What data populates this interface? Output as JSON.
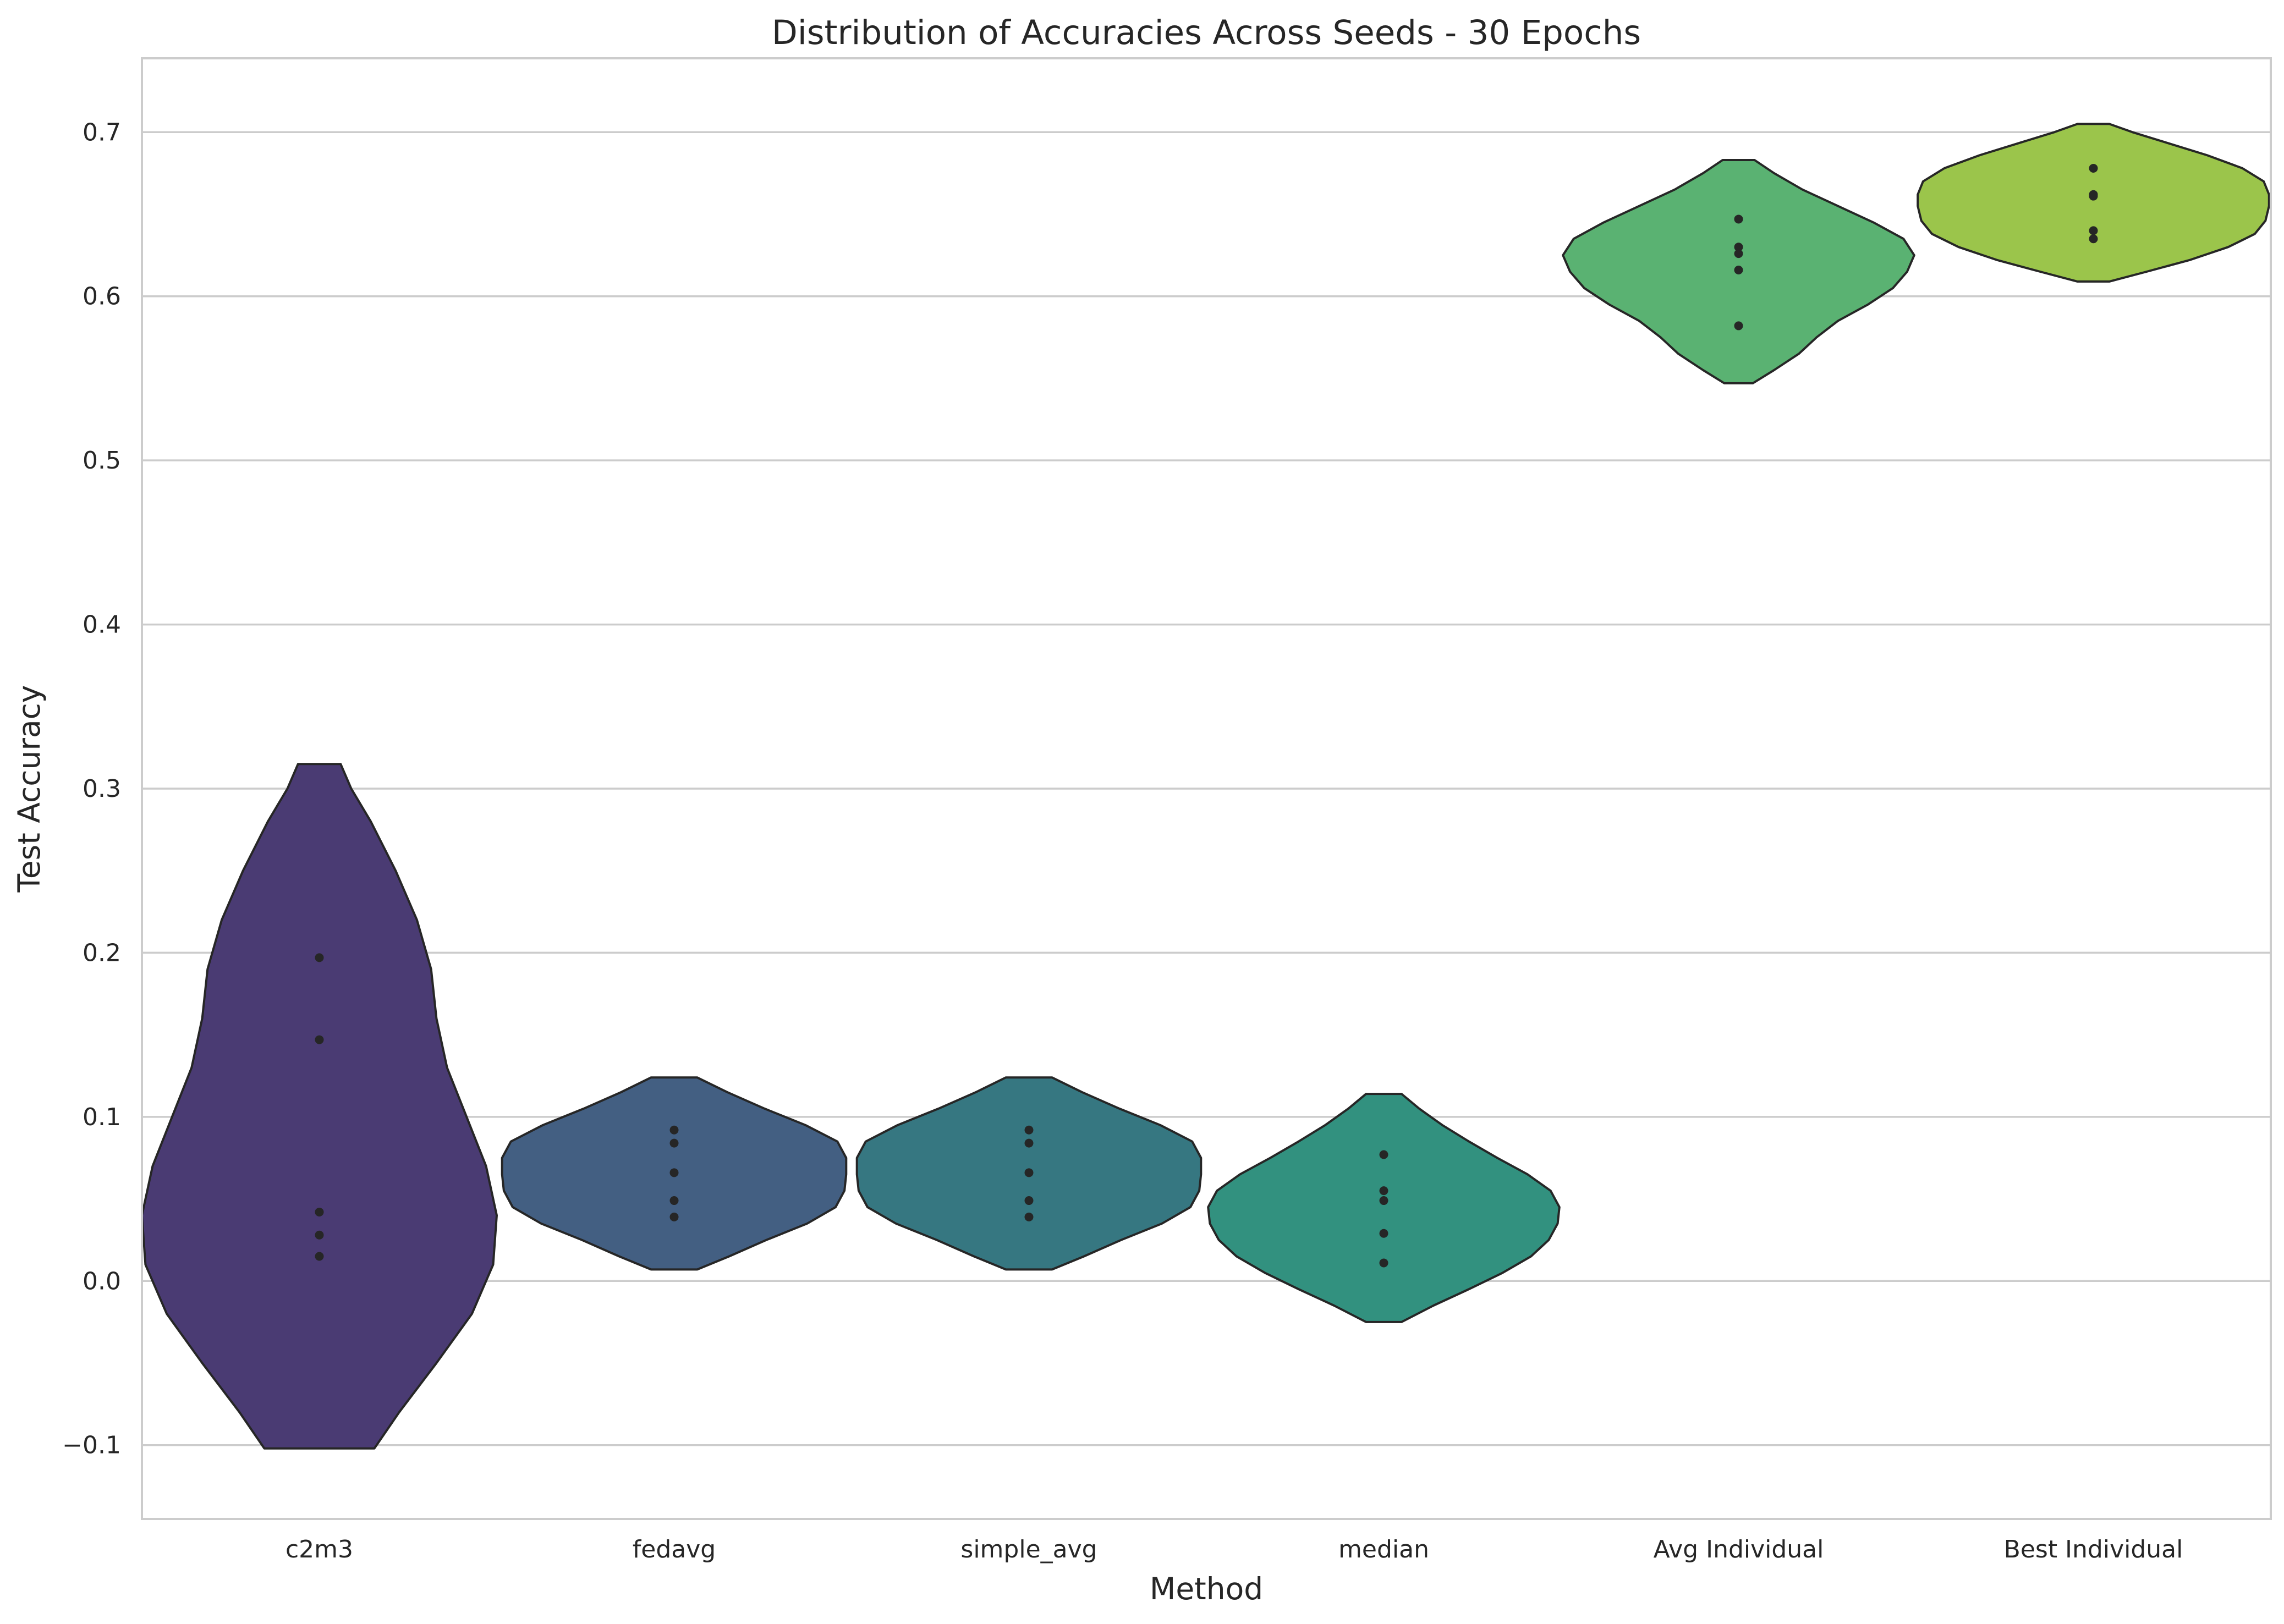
{
  "chart_data": {
    "type": "violin",
    "title": "Distribution of Accuracies Across Seeds - 30 Epochs",
    "xlabel": "Method",
    "ylabel": "Test Accuracy",
    "ylim": [
      -0.145,
      0.745
    ],
    "y_ticks": [
      -0.1,
      0.0,
      0.1,
      0.2,
      0.3,
      0.4,
      0.5,
      0.6,
      0.7
    ],
    "y_tick_labels": [
      "−0.1",
      "0.0",
      "0.1",
      "0.2",
      "0.3",
      "0.4",
      "0.5",
      "0.6",
      "0.7"
    ],
    "grid": "horizontal",
    "categories": [
      "c2m3",
      "fedavg",
      "simple_avg",
      "median",
      "Avg Individual",
      "Best Individual"
    ],
    "series": [
      {
        "category": "c2m3",
        "color": "#4a3b73",
        "points": [
          0.197,
          0.147,
          0.042,
          0.028,
          0.015
        ],
        "range": [
          -0.102,
          0.315
        ],
        "density": [
          [
            -0.102,
            0.31
          ],
          [
            -0.08,
            0.45
          ],
          [
            -0.05,
            0.66
          ],
          [
            -0.02,
            0.86
          ],
          [
            0.01,
            0.98
          ],
          [
            0.04,
            1.0
          ],
          [
            0.07,
            0.94
          ],
          [
            0.1,
            0.83
          ],
          [
            0.13,
            0.72
          ],
          [
            0.16,
            0.66
          ],
          [
            0.19,
            0.63
          ],
          [
            0.22,
            0.55
          ],
          [
            0.25,
            0.43
          ],
          [
            0.28,
            0.29
          ],
          [
            0.3,
            0.18
          ],
          [
            0.315,
            0.12
          ]
        ]
      },
      {
        "category": "fedavg",
        "color": "#435f82",
        "points": [
          0.092,
          0.084,
          0.066,
          0.049,
          0.039
        ],
        "range": [
          0.007,
          0.124
        ],
        "density": [
          [
            0.007,
            0.13
          ],
          [
            0.015,
            0.31
          ],
          [
            0.025,
            0.52
          ],
          [
            0.035,
            0.75
          ],
          [
            0.045,
            0.91
          ],
          [
            0.055,
            0.96
          ],
          [
            0.065,
            0.97
          ],
          [
            0.075,
            0.97
          ],
          [
            0.085,
            0.92
          ],
          [
            0.095,
            0.74
          ],
          [
            0.105,
            0.51
          ],
          [
            0.115,
            0.3
          ],
          [
            0.124,
            0.13
          ]
        ]
      },
      {
        "category": "simple_avg",
        "color": "#367781",
        "points": [
          0.092,
          0.084,
          0.066,
          0.049,
          0.039
        ],
        "range": [
          0.007,
          0.124
        ],
        "density": [
          [
            0.007,
            0.13
          ],
          [
            0.015,
            0.31
          ],
          [
            0.025,
            0.52
          ],
          [
            0.035,
            0.75
          ],
          [
            0.045,
            0.91
          ],
          [
            0.055,
            0.96
          ],
          [
            0.065,
            0.97
          ],
          [
            0.075,
            0.97
          ],
          [
            0.085,
            0.92
          ],
          [
            0.095,
            0.74
          ],
          [
            0.105,
            0.51
          ],
          [
            0.115,
            0.3
          ],
          [
            0.124,
            0.13
          ]
        ]
      },
      {
        "category": "median",
        "color": "#32917f",
        "points": [
          0.077,
          0.055,
          0.049,
          0.029,
          0.011
        ],
        "range": [
          -0.025,
          0.114
        ],
        "density": [
          [
            -0.025,
            0.1
          ],
          [
            -0.015,
            0.28
          ],
          [
            -0.005,
            0.48
          ],
          [
            0.005,
            0.67
          ],
          [
            0.015,
            0.83
          ],
          [
            0.025,
            0.93
          ],
          [
            0.035,
            0.98
          ],
          [
            0.045,
            0.99
          ],
          [
            0.055,
            0.94
          ],
          [
            0.065,
            0.81
          ],
          [
            0.075,
            0.64
          ],
          [
            0.085,
            0.48
          ],
          [
            0.095,
            0.33
          ],
          [
            0.105,
            0.2
          ],
          [
            0.114,
            0.1
          ]
        ]
      },
      {
        "category": "Avg Individual",
        "color": "#5ab272",
        "points": [
          0.647,
          0.63,
          0.626,
          0.616,
          0.582
        ],
        "range": [
          0.547,
          0.683
        ],
        "density": [
          [
            0.547,
            0.08
          ],
          [
            0.555,
            0.2
          ],
          [
            0.565,
            0.34
          ],
          [
            0.575,
            0.44
          ],
          [
            0.585,
            0.56
          ],
          [
            0.595,
            0.73
          ],
          [
            0.605,
            0.87
          ],
          [
            0.615,
            0.95
          ],
          [
            0.625,
            0.99
          ],
          [
            0.635,
            0.93
          ],
          [
            0.645,
            0.76
          ],
          [
            0.655,
            0.56
          ],
          [
            0.665,
            0.36
          ],
          [
            0.675,
            0.2
          ],
          [
            0.683,
            0.09
          ]
        ]
      },
      {
        "category": "Best Individual",
        "color": "#9bc54b",
        "points": [
          0.678,
          0.662,
          0.661,
          0.64,
          0.635
        ],
        "range": [
          0.609,
          0.705
        ],
        "density": [
          [
            0.609,
            0.09
          ],
          [
            0.615,
            0.3
          ],
          [
            0.622,
            0.54
          ],
          [
            0.63,
            0.76
          ],
          [
            0.638,
            0.91
          ],
          [
            0.646,
            0.97
          ],
          [
            0.655,
            0.99
          ],
          [
            0.662,
            0.99
          ],
          [
            0.67,
            0.96
          ],
          [
            0.678,
            0.84
          ],
          [
            0.686,
            0.64
          ],
          [
            0.694,
            0.4
          ],
          [
            0.7,
            0.22
          ],
          [
            0.705,
            0.09
          ]
        ]
      }
    ]
  }
}
